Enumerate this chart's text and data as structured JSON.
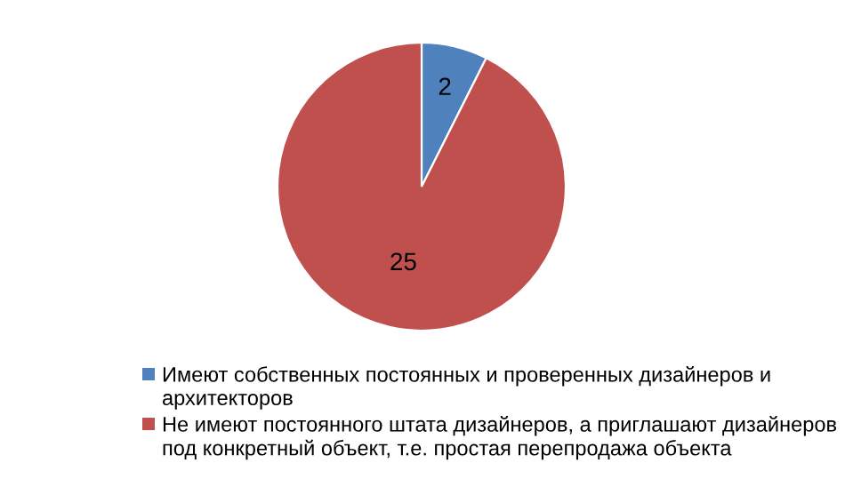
{
  "chart_data": {
    "type": "pie",
    "categories": [
      "Имеют собственных постоянных и проверенных дизайнеров и архитекторов",
      "Не имеют постоянного штата дизайнеров, а приглашают дизайнеров под конкретный объект, т.е. простая перепродажа объекта"
    ],
    "values": [
      2,
      25
    ],
    "colors": [
      "#4f81bd",
      "#c0504d"
    ],
    "data_labels": true,
    "legend": "bottom"
  }
}
